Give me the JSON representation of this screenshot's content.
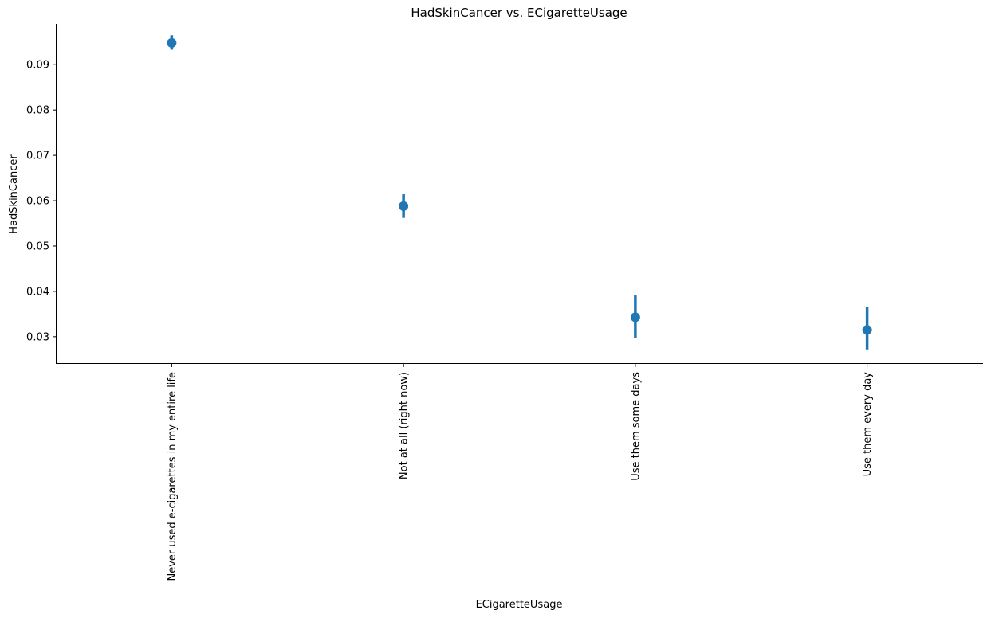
{
  "chart_data": {
    "type": "scatter",
    "title": "HadSkinCancer vs. ECigaretteUsage",
    "xlabel": "ECigaretteUsage",
    "ylabel": "HadSkinCancer",
    "categories": [
      "Never used e-cigarettes in my entire life",
      "Not at all (right now)",
      "Use them some days",
      "Use them every day"
    ],
    "values": [
      0.0948,
      0.0588,
      0.0343,
      0.0315
    ],
    "ci_low": [
      0.0933,
      0.0562,
      0.0297,
      0.0272
    ],
    "ci_high": [
      0.0965,
      0.0615,
      0.0391,
      0.0366
    ],
    "ylim": [
      0.024,
      0.099
    ],
    "yticks": [
      0.03,
      0.04,
      0.05,
      0.06,
      0.07,
      0.08,
      0.09
    ],
    "ytick_labels": [
      "0.03",
      "0.04",
      "0.05",
      "0.06",
      "0.07",
      "0.08",
      "0.09"
    ],
    "grid": false,
    "color": "#1f77b4"
  }
}
